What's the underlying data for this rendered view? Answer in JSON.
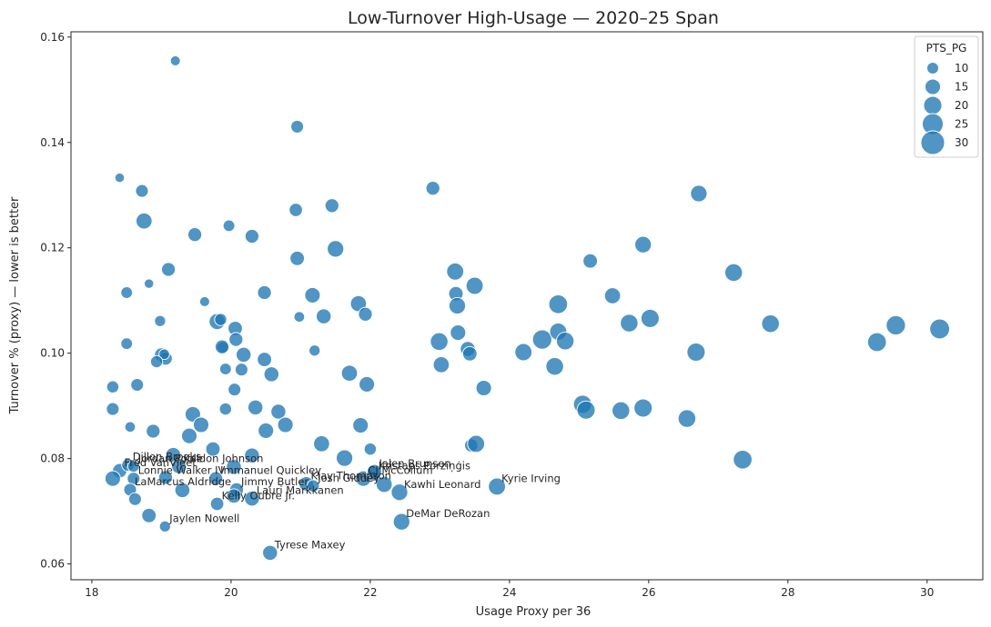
{
  "chart_data": {
    "type": "scatter",
    "title": "Low-Turnover High-Usage — 2020–25 Span",
    "xlabel": "Usage Proxy per 36",
    "ylabel": "Turnover % (proxy) — lower is better",
    "xlim": [
      17.7,
      30.8
    ],
    "ylim": [
      0.057,
      0.161
    ],
    "xticks": [
      18,
      20,
      22,
      24,
      26,
      28,
      30
    ],
    "yticks": [
      0.06,
      0.08,
      0.1,
      0.12,
      0.14,
      0.16
    ],
    "ytick_labels": [
      "0.06",
      "0.08",
      "0.10",
      "0.12",
      "0.14",
      "0.16"
    ],
    "grid": false,
    "color": "#1f77b4",
    "legend": {
      "title": "PTS_PG",
      "placement": "top-right",
      "entries": [
        "10",
        "15",
        "20",
        "25",
        "30"
      ],
      "sizes": [
        10,
        15,
        20,
        25,
        30
      ]
    },
    "points": [
      {
        "x": 19.2,
        "y": 0.1555,
        "s": 9
      },
      {
        "x": 20.95,
        "y": 0.143,
        "s": 14
      },
      {
        "x": 18.4,
        "y": 0.1333,
        "s": 8
      },
      {
        "x": 18.72,
        "y": 0.1308,
        "s": 14
      },
      {
        "x": 22.9,
        "y": 0.1313,
        "s": 16
      },
      {
        "x": 26.72,
        "y": 0.1303,
        "s": 21
      },
      {
        "x": 20.93,
        "y": 0.1272,
        "s": 15
      },
      {
        "x": 21.45,
        "y": 0.128,
        "s": 16
      },
      {
        "x": 18.75,
        "y": 0.1251,
        "s": 20
      },
      {
        "x": 19.97,
        "y": 0.1242,
        "s": 12
      },
      {
        "x": 19.48,
        "y": 0.1225,
        "s": 16
      },
      {
        "x": 20.3,
        "y": 0.1222,
        "s": 16
      },
      {
        "x": 21.5,
        "y": 0.1198,
        "s": 21
      },
      {
        "x": 25.92,
        "y": 0.1206,
        "s": 21
      },
      {
        "x": 20.95,
        "y": 0.118,
        "s": 17
      },
      {
        "x": 25.16,
        "y": 0.1175,
        "s": 17
      },
      {
        "x": 19.1,
        "y": 0.1159,
        "s": 16
      },
      {
        "x": 23.22,
        "y": 0.1155,
        "s": 22
      },
      {
        "x": 27.22,
        "y": 0.1153,
        "s": 23
      },
      {
        "x": 18.5,
        "y": 0.1115,
        "s": 12
      },
      {
        "x": 18.82,
        "y": 0.1132,
        "s": 8
      },
      {
        "x": 20.48,
        "y": 0.1115,
        "s": 16
      },
      {
        "x": 21.17,
        "y": 0.111,
        "s": 19
      },
      {
        "x": 23.23,
        "y": 0.1113,
        "s": 17
      },
      {
        "x": 23.5,
        "y": 0.1128,
        "s": 22
      },
      {
        "x": 25.48,
        "y": 0.1109,
        "s": 20
      },
      {
        "x": 19.62,
        "y": 0.1098,
        "s": 9
      },
      {
        "x": 21.83,
        "y": 0.1094,
        "s": 20
      },
      {
        "x": 23.25,
        "y": 0.109,
        "s": 21
      },
      {
        "x": 24.7,
        "y": 0.1093,
        "s": 25
      },
      {
        "x": 21.33,
        "y": 0.107,
        "s": 18
      },
      {
        "x": 21.93,
        "y": 0.1074,
        "s": 16
      },
      {
        "x": 20.98,
        "y": 0.1069,
        "s": 10
      },
      {
        "x": 19.8,
        "y": 0.106,
        "s": 20
      },
      {
        "x": 19.85,
        "y": 0.1064,
        "s": 13
      },
      {
        "x": 18.98,
        "y": 0.1061,
        "s": 11
      },
      {
        "x": 20.06,
        "y": 0.1047,
        "s": 17
      },
      {
        "x": 25.72,
        "y": 0.1057,
        "s": 23
      },
      {
        "x": 26.02,
        "y": 0.1066,
        "s": 24
      },
      {
        "x": 27.75,
        "y": 0.1056,
        "s": 23
      },
      {
        "x": 29.55,
        "y": 0.1053,
        "s": 26
      },
      {
        "x": 30.18,
        "y": 0.1046,
        "s": 27
      },
      {
        "x": 20.07,
        "y": 0.1026,
        "s": 16
      },
      {
        "x": 18.5,
        "y": 0.1018,
        "s": 12
      },
      {
        "x": 23.26,
        "y": 0.1039,
        "s": 19
      },
      {
        "x": 24.47,
        "y": 0.1026,
        "s": 26
      },
      {
        "x": 24.7,
        "y": 0.1041,
        "s": 22
      },
      {
        "x": 24.8,
        "y": 0.1023,
        "s": 23
      },
      {
        "x": 22.99,
        "y": 0.1022,
        "s": 23
      },
      {
        "x": 29.28,
        "y": 0.1021,
        "s": 25
      },
      {
        "x": 19.88,
        "y": 0.1011,
        "s": 12
      },
      {
        "x": 19.87,
        "y": 0.1012,
        "s": 16
      },
      {
        "x": 21.2,
        "y": 0.1005,
        "s": 11
      },
      {
        "x": 23.4,
        "y": 0.1008,
        "s": 18
      },
      {
        "x": 23.43,
        "y": 0.0999,
        "s": 17
      },
      {
        "x": 24.2,
        "y": 0.1002,
        "s": 22
      },
      {
        "x": 26.68,
        "y": 0.1002,
        "s": 24
      },
      {
        "x": 19.0,
        "y": 0.0997,
        "s": 16
      },
      {
        "x": 19.06,
        "y": 0.099,
        "s": 15
      },
      {
        "x": 19.04,
        "y": 0.0998,
        "s": 10
      },
      {
        "x": 20.18,
        "y": 0.0997,
        "s": 18
      },
      {
        "x": 20.48,
        "y": 0.0988,
        "s": 17
      },
      {
        "x": 18.93,
        "y": 0.0984,
        "s": 13
      },
      {
        "x": 23.02,
        "y": 0.0978,
        "s": 20
      },
      {
        "x": 24.65,
        "y": 0.0975,
        "s": 23
      },
      {
        "x": 19.92,
        "y": 0.097,
        "s": 12
      },
      {
        "x": 20.15,
        "y": 0.0969,
        "s": 14
      },
      {
        "x": 20.58,
        "y": 0.096,
        "s": 18
      },
      {
        "x": 21.7,
        "y": 0.0962,
        "s": 20
      },
      {
        "x": 21.95,
        "y": 0.0941,
        "s": 19
      },
      {
        "x": 18.3,
        "y": 0.0936,
        "s": 13
      },
      {
        "x": 18.65,
        "y": 0.094,
        "s": 14
      },
      {
        "x": 20.05,
        "y": 0.0931,
        "s": 14
      },
      {
        "x": 23.63,
        "y": 0.0934,
        "s": 19
      },
      {
        "x": 25.05,
        "y": 0.0903,
        "s": 24
      },
      {
        "x": 25.1,
        "y": 0.0892,
        "s": 24
      },
      {
        "x": 25.6,
        "y": 0.0891,
        "s": 23
      },
      {
        "x": 25.92,
        "y": 0.0896,
        "s": 24
      },
      {
        "x": 26.55,
        "y": 0.0876,
        "s": 23
      },
      {
        "x": 18.3,
        "y": 0.0894,
        "s": 14
      },
      {
        "x": 19.45,
        "y": 0.0884,
        "s": 19
      },
      {
        "x": 19.92,
        "y": 0.0894,
        "s": 13
      },
      {
        "x": 20.35,
        "y": 0.0897,
        "s": 18
      },
      {
        "x": 20.68,
        "y": 0.0889,
        "s": 18
      },
      {
        "x": 19.57,
        "y": 0.0864,
        "s": 19
      },
      {
        "x": 20.78,
        "y": 0.0864,
        "s": 19
      },
      {
        "x": 21.86,
        "y": 0.0863,
        "s": 19
      },
      {
        "x": 18.55,
        "y": 0.086,
        "s": 10
      },
      {
        "x": 18.88,
        "y": 0.0852,
        "s": 16
      },
      {
        "x": 20.5,
        "y": 0.0853,
        "s": 19
      },
      {
        "x": 19.4,
        "y": 0.0843,
        "s": 19
      },
      {
        "x": 21.3,
        "y": 0.0828,
        "s": 20
      },
      {
        "x": 23.45,
        "y": 0.0825,
        "s": 15
      },
      {
        "x": 23.52,
        "y": 0.0828,
        "s": 22
      },
      {
        "x": 19.74,
        "y": 0.0818,
        "s": 17
      },
      {
        "x": 22.0,
        "y": 0.0818,
        "s": 13
      },
      {
        "x": 19.17,
        "y": 0.0807,
        "s": 18
      },
      {
        "x": 20.3,
        "y": 0.0806,
        "s": 18
      },
      {
        "x": 21.63,
        "y": 0.0801,
        "s": 21
      },
      {
        "x": 27.35,
        "y": 0.0798,
        "s": 25
      },
      {
        "x": 18.4,
        "y": 0.0777,
        "label": "Fred VanVleet",
        "s": 17
      },
      {
        "x": 18.52,
        "y": 0.0788,
        "label": "Dillon Brooks",
        "s": 14
      },
      {
        "x": 18.6,
        "y": 0.0785,
        "label": "Jordan Poole",
        "s": 12
      },
      {
        "x": 19.25,
        "y": 0.0785,
        "label": "Keldon Johnson",
        "s": 17
      },
      {
        "x": 20.04,
        "y": 0.0784,
        "s": 18
      },
      {
        "x": 18.3,
        "y": 0.0762,
        "s": 19
      },
      {
        "x": 18.6,
        "y": 0.0762,
        "label": "Lonnie Walker IV",
        "s": 14
      },
      {
        "x": 19.06,
        "y": 0.0764,
        "s": 16
      },
      {
        "x": 19.78,
        "y": 0.0762,
        "label": "Immanuel Quickley",
        "s": 16
      },
      {
        "x": 18.55,
        "y": 0.0741,
        "label": "LaMarcus Aldridge",
        "s": 14
      },
      {
        "x": 19.3,
        "y": 0.074,
        "s": 18
      },
      {
        "x": 20.08,
        "y": 0.0741,
        "label": "Jimmy Butler",
        "s": 16
      },
      {
        "x": 20.3,
        "y": 0.0724,
        "label": "Lauri Markkanen",
        "s": 18
      },
      {
        "x": 20.04,
        "y": 0.0729,
        "s": 17
      },
      {
        "x": 21.08,
        "y": 0.0752,
        "label": "Klay Thompson",
        "s": 17
      },
      {
        "x": 21.18,
        "y": 0.0748,
        "label": "Josh Giddey",
        "s": 13
      },
      {
        "x": 21.9,
        "y": 0.0762,
        "label": "CJ McCollum",
        "s": 19
      },
      {
        "x": 22.05,
        "y": 0.0771,
        "label": "Kristaps Porziņģis",
        "s": 17
      },
      {
        "x": 22.06,
        "y": 0.0775,
        "label": "Jalen Brunson",
        "s": 17
      },
      {
        "x": 22.2,
        "y": 0.0751,
        "s": 20
      },
      {
        "x": 22.42,
        "y": 0.0736,
        "label": "Kawhi Leonard",
        "s": 21
      },
      {
        "x": 23.82,
        "y": 0.0747,
        "label": "Kyrie Irving",
        "s": 22
      },
      {
        "x": 18.62,
        "y": 0.0723,
        "s": 14
      },
      {
        "x": 19.8,
        "y": 0.0714,
        "label": "Kelly Oubre Jr.",
        "s": 15
      },
      {
        "x": 18.82,
        "y": 0.0692,
        "s": 17
      },
      {
        "x": 19.05,
        "y": 0.0671,
        "label": "Jaylen Nowell",
        "s": 11
      },
      {
        "x": 22.45,
        "y": 0.068,
        "label": "DeMar DeRozan",
        "s": 21
      },
      {
        "x": 20.56,
        "y": 0.0621,
        "label": "Tyrese Maxey",
        "s": 18
      }
    ]
  }
}
